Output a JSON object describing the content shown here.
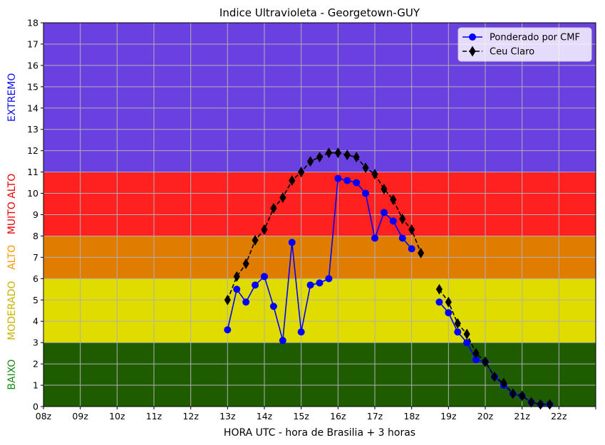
{
  "chart_data": {
    "type": "line",
    "title": "Indice Ultravioleta - Georgetown-GUY",
    "xlabel": "HORA UTC - hora de Brasilia + 3 horas",
    "ylabel": "",
    "xlim": [
      8,
      23
    ],
    "ylim": [
      0,
      18
    ],
    "grid": true,
    "legend_position": "top-right",
    "x_tick_labels": [
      "08z",
      "09z",
      "10z",
      "11z",
      "12z",
      "13z",
      "14z",
      "15z",
      "16z",
      "17z",
      "18z",
      "19z",
      "20z",
      "21z",
      "22z",
      ""
    ],
    "y_ticks": [
      0,
      1,
      2,
      3,
      4,
      5,
      6,
      7,
      8,
      9,
      10,
      11,
      12,
      13,
      14,
      15,
      16,
      17,
      18
    ],
    "bands": [
      {
        "label": "BAIXO",
        "from": 0,
        "to": 3,
        "fill": "#1f5c00",
        "label_color": "#1a8a1a"
      },
      {
        "label": "MODERADO",
        "from": 3,
        "to": 6,
        "fill": "#e0dc00",
        "label_color": "#c8b400"
      },
      {
        "label": "ALTO",
        "from": 6,
        "to": 8,
        "fill": "#e07c00",
        "label_color": "#ff9900"
      },
      {
        "label": "MUITO ALTO",
        "from": 8,
        "to": 11,
        "fill": "#ff2020",
        "label_color": "#ee0000"
      },
      {
        "label": "EXTREMO",
        "from": 11,
        "to": 18,
        "fill": "#6a40e0",
        "label_color": "#1010ee"
      }
    ],
    "series": [
      {
        "name": "Ponderado por CMF",
        "color": "#0000ff",
        "marker": "circle",
        "linestyle": "solid",
        "segments": [
          {
            "x": [
              13.0,
              13.25,
              13.5,
              13.75,
              14.0,
              14.25,
              14.5,
              14.75,
              15.0,
              15.25,
              15.5,
              15.75,
              16.0,
              16.25,
              16.5,
              16.75,
              17.0,
              17.25,
              17.5,
              17.75,
              18.0
            ],
            "y": [
              3.6,
              5.5,
              4.9,
              5.7,
              6.1,
              4.7,
              3.1,
              7.7,
              3.5,
              5.7,
              5.8,
              6.0,
              10.7,
              10.6,
              10.5,
              10.0,
              7.9,
              9.1,
              8.7,
              7.9,
              7.4
            ]
          },
          {
            "x": [
              18.75,
              19.0,
              19.25,
              19.5,
              19.75,
              20.0,
              20.25,
              20.5,
              20.75,
              21.0,
              21.25,
              21.5,
              21.75
            ],
            "y": [
              4.9,
              4.4,
              3.5,
              3.0,
              2.2,
              2.1,
              1.4,
              1.0,
              0.6,
              0.5,
              0.2,
              0.1,
              0.1
            ]
          }
        ]
      },
      {
        "name": "Ceu Claro",
        "color": "#000000",
        "marker": "diamond",
        "linestyle": "dashed",
        "segments": [
          {
            "x": [
              13.0,
              13.25,
              13.5,
              13.75,
              14.0,
              14.25,
              14.5,
              14.75,
              15.0,
              15.25,
              15.5,
              15.75,
              16.0,
              16.25,
              16.5,
              16.75,
              17.0,
              17.25,
              17.5,
              17.75,
              18.0,
              18.25
            ],
            "y": [
              5.0,
              6.1,
              6.7,
              7.8,
              8.3,
              9.3,
              9.8,
              10.6,
              11.0,
              11.5,
              11.7,
              11.9,
              11.9,
              11.8,
              11.7,
              11.2,
              10.9,
              10.2,
              9.7,
              8.8,
              8.3,
              7.2
            ]
          },
          {
            "x": [
              18.75,
              19.0,
              19.25,
              19.5,
              19.75,
              20.0,
              20.25,
              20.5,
              20.75,
              21.0,
              21.25,
              21.5,
              21.75
            ],
            "y": [
              5.5,
              4.9,
              3.9,
              3.4,
              2.5,
              2.1,
              1.4,
              1.1,
              0.6,
              0.5,
              0.2,
              0.1,
              0.1
            ]
          }
        ]
      }
    ]
  }
}
